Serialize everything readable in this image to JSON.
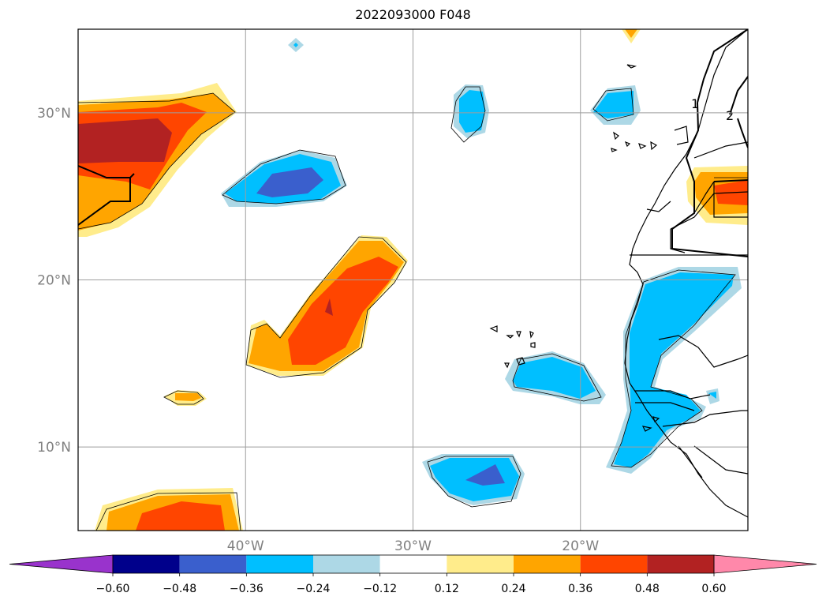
{
  "title": "2022093000 F048",
  "map": {
    "lon_range": [
      -50,
      -10
    ],
    "lat_range": [
      5,
      35
    ],
    "lat_ticks": [
      {
        "value": 30,
        "label": "30°N"
      },
      {
        "value": 20,
        "label": "20°N"
      },
      {
        "value": 10,
        "label": "10°N"
      }
    ],
    "lon_ticks": [
      {
        "value": -40,
        "label": "40°W"
      },
      {
        "value": -30,
        "label": "30°W"
      },
      {
        "value": -20,
        "label": "20°W"
      }
    ],
    "gridlines": true,
    "isoline_labels": [
      "1",
      "2"
    ]
  },
  "colorbar": {
    "extend": "both",
    "tick_labels": [
      "−0.60",
      "−0.48",
      "−0.36",
      "−0.24",
      "−0.12",
      "0.12",
      "0.24",
      "0.36",
      "0.48",
      "0.60"
    ],
    "colors": {
      "below": "#9933cc",
      "bins": [
        "#00008b",
        "#3a5fcd",
        "#00bfff",
        "#add8e6",
        "#ffffff",
        "#ffec8b",
        "#ffa500",
        "#ff4500",
        "#b22222"
      ],
      "above": "#ff88aa"
    }
  }
}
